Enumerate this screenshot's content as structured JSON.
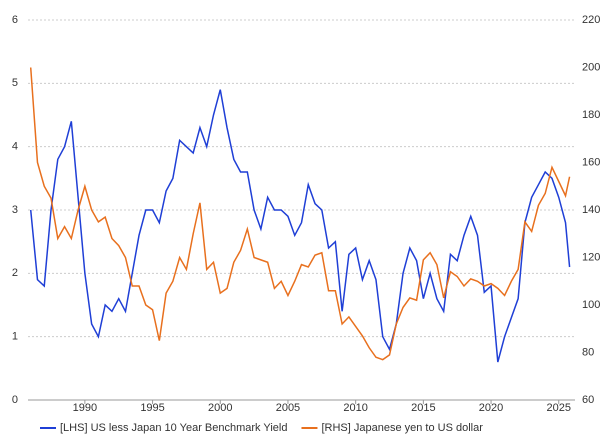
{
  "chart_data": {
    "type": "line",
    "x": [
      1986,
      1986.5,
      1987,
      1987.5,
      1988,
      1988.5,
      1989,
      1989.5,
      1990,
      1990.5,
      1991,
      1991.5,
      1992,
      1992.5,
      1993,
      1993.5,
      1994,
      1994.5,
      1995,
      1995.5,
      1996,
      1996.5,
      1997,
      1997.5,
      1998,
      1998.5,
      1999,
      1999.5,
      2000,
      2000.5,
      2001,
      2001.5,
      2002,
      2002.5,
      2003,
      2003.5,
      2004,
      2004.5,
      2005,
      2005.5,
      2006,
      2006.5,
      2007,
      2007.5,
      2008,
      2008.5,
      2009,
      2009.5,
      2010,
      2010.5,
      2011,
      2011.5,
      2012,
      2012.5,
      2013,
      2013.5,
      2014,
      2014.5,
      2015,
      2015.5,
      2016,
      2016.5,
      2017,
      2017.5,
      2018,
      2018.5,
      2019,
      2019.5,
      2020,
      2020.5,
      2021,
      2021.5,
      2022,
      2022.5,
      2023,
      2023.5,
      2024,
      2024.5,
      2025,
      2025.5,
      2025.8
    ],
    "series": [
      {
        "name": "[LHS] US less Japan 10 Year Benchmark Yield",
        "color": "#1f3fd6",
        "axis": "y",
        "values": [
          3.0,
          1.9,
          1.8,
          3.0,
          3.8,
          4.0,
          4.4,
          3.2,
          2.0,
          1.2,
          1.0,
          1.5,
          1.4,
          1.6,
          1.4,
          2.0,
          2.6,
          3.0,
          3.0,
          2.8,
          3.3,
          3.5,
          4.1,
          4.0,
          3.9,
          4.3,
          4.0,
          4.5,
          4.9,
          4.3,
          3.8,
          3.6,
          3.6,
          3.0,
          2.7,
          3.2,
          3.0,
          3.0,
          2.9,
          2.6,
          2.8,
          3.4,
          3.1,
          3.0,
          2.4,
          2.5,
          1.4,
          2.3,
          2.4,
          1.9,
          2.2,
          1.9,
          1.0,
          0.8,
          1.2,
          2.0,
          2.4,
          2.2,
          1.6,
          2.0,
          1.6,
          1.4,
          2.3,
          2.2,
          2.6,
          2.9,
          2.6,
          1.7,
          1.8,
          0.6,
          1.0,
          1.3,
          1.6,
          2.8,
          3.2,
          3.4,
          3.6,
          3.5,
          3.2,
          2.8,
          2.1
        ]
      },
      {
        "name": "[RHS] Japanese yen to US dollar",
        "color": "#e8701e",
        "axis": "y2",
        "values": [
          200,
          160,
          150,
          145,
          128,
          133,
          128,
          140,
          150,
          140,
          135,
          137,
          128,
          125,
          120,
          108,
          108,
          100,
          98,
          85,
          105,
          110,
          120,
          115,
          130,
          143,
          115,
          118,
          105,
          107,
          118,
          123,
          132,
          120,
          119,
          118,
          107,
          110,
          104,
          110,
          117,
          116,
          121,
          122,
          106,
          106,
          92,
          95,
          91,
          87,
          82,
          78,
          77,
          79,
          92,
          99,
          103,
          102,
          119,
          122,
          117,
          103,
          114,
          112,
          108,
          111,
          110,
          108,
          109,
          107,
          104,
          110,
          115,
          135,
          131,
          142,
          147,
          158,
          152,
          146,
          154
        ]
      }
    ],
    "xlim": [
      1985.8,
      2026.2
    ],
    "xticks": [
      1990,
      1995,
      2000,
      2005,
      2010,
      2015,
      2020,
      2025
    ],
    "ylim": [
      0,
      6
    ],
    "yticks": [
      0,
      1,
      2,
      3,
      4,
      5,
      6
    ],
    "y2lim": [
      60,
      220
    ],
    "y2ticks": [
      60,
      80,
      100,
      120,
      140,
      160,
      180,
      200,
      220
    ],
    "grid": true,
    "legend": "bottom"
  }
}
